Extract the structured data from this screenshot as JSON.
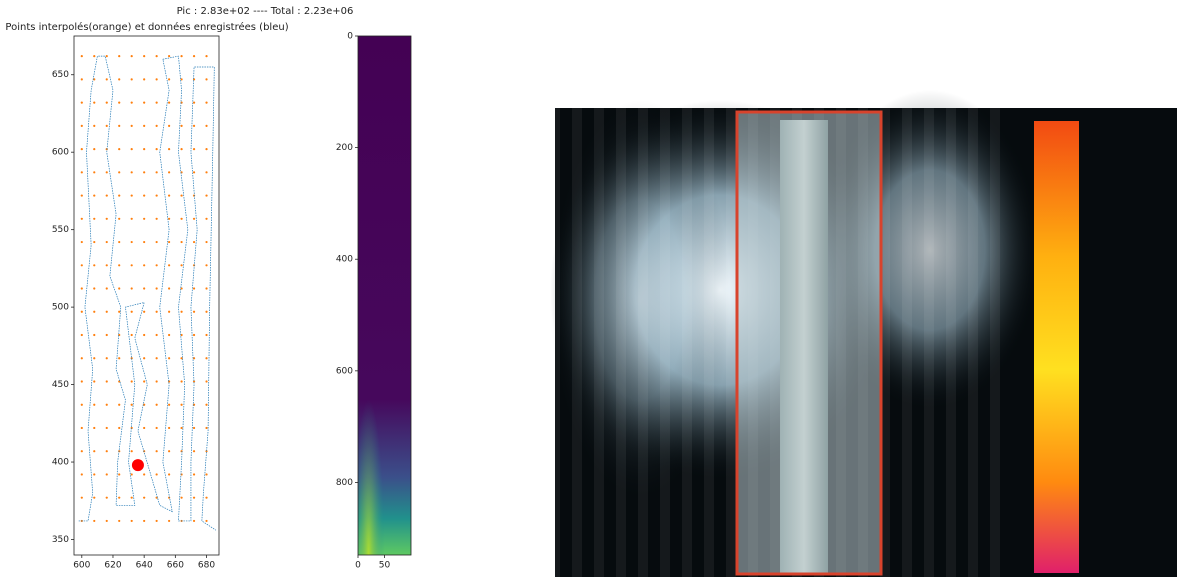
{
  "suptitle": "Pic : 2.83e+02  ---- Total : 2.23e+06",
  "chart_data": [
    {
      "type": "scatter",
      "title": "Points interpolés(orange) et données enregistrées (bleu)",
      "xlim": [
        595,
        688
      ],
      "ylim": [
        340,
        675
      ],
      "xticks": [
        600,
        620,
        640,
        660,
        680
      ],
      "yticks": [
        350,
        400,
        450,
        500,
        550,
        600,
        650
      ],
      "grid_points": {
        "color": "#ff7f0e",
        "x_grid": [
          600,
          608,
          616,
          624,
          632,
          640,
          648,
          656,
          664,
          672,
          680
        ],
        "y_grid": [
          362,
          377,
          392,
          407,
          422,
          437,
          452,
          467,
          482,
          497,
          512,
          527,
          542,
          557,
          572,
          587,
          602,
          617,
          632,
          647,
          662
        ]
      },
      "trajectory": {
        "color": "#1f77b4",
        "x": [
          598,
          604,
          607,
          604,
          607,
          602,
          606,
          603,
          606,
          610,
          615,
          620,
          616,
          622,
          618,
          625,
          622,
          628,
          623,
          622,
          634,
          630,
          634,
          628,
          640,
          634,
          642,
          636,
          650,
          658,
          652,
          656,
          650,
          656,
          650,
          656,
          652,
          662,
          664,
          662,
          668,
          662,
          666,
          664,
          662,
          670,
          670,
          672,
          670,
          674,
          670,
          672,
          685,
          684,
          682,
          681,
          678,
          677,
          686
        ],
        "y": [
          362,
          362,
          380,
          420,
          460,
          500,
          540,
          600,
          640,
          662,
          662,
          640,
          600,
          560,
          520,
          500,
          460,
          440,
          400,
          372,
          372,
          400,
          450,
          500,
          503,
          480,
          450,
          420,
          372,
          368,
          400,
          450,
          500,
          550,
          600,
          640,
          660,
          662,
          640,
          600,
          550,
          500,
          450,
          400,
          362,
          362,
          400,
          450,
          500,
          550,
          600,
          655,
          655,
          600,
          500,
          420,
          380,
          362,
          356
        ]
      },
      "marker": {
        "color": "#ff0000",
        "x": 636,
        "y": 398
      }
    },
    {
      "type": "image",
      "xlim": [
        0,
        100
      ],
      "ylim": [
        930,
        0
      ],
      "xticks": [
        0,
        50
      ],
      "yticks": [
        0,
        200,
        400,
        600,
        800
      ]
    }
  ]
}
